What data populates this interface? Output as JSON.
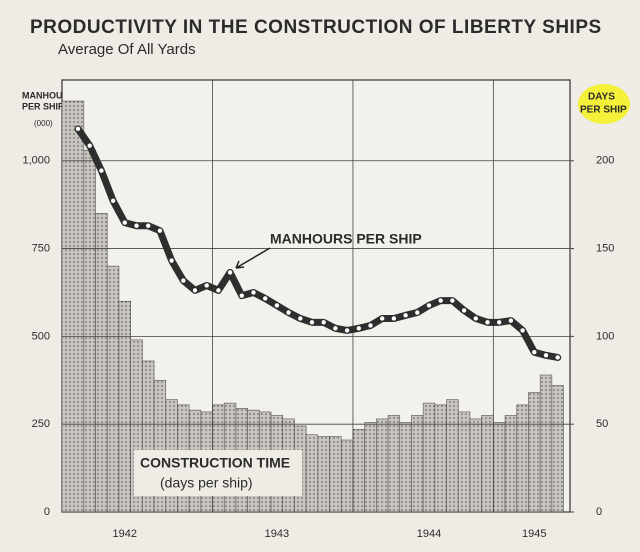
{
  "chart_data": {
    "type": "line",
    "title": "PRODUCTIVITY IN THE CONSTRUCTION OF LIBERTY SHIPS",
    "subtitle": "Average Of All Yards",
    "ylabel": [
      "MANHOURS",
      "PER SHIP",
      "(000)"
    ],
    "y2label": [
      "DAYS",
      "PER SHIP"
    ],
    "annotations": [
      "MANHOURS PER SHIP",
      "CONSTRUCTION TIME",
      "(days per ship)"
    ],
    "categories": [
      null,
      null,
      null,
      null,
      "1942",
      null,
      null,
      null,
      null,
      null,
      null,
      null,
      null,
      null,
      null,
      null,
      null,
      "1943",
      null,
      null,
      null,
      null,
      null,
      null,
      null,
      null,
      null,
      null,
      null,
      null,
      "1944",
      null,
      null,
      null,
      null,
      null,
      null,
      null,
      null,
      "1945",
      null,
      null
    ],
    "series": [
      {
        "name": "MANHOURS PER SHIP",
        "color": "#2e2e2e",
        "values": [
          1091,
          1043,
          972,
          886,
          824,
          815,
          815,
          801,
          716,
          659,
          631,
          645,
          631,
          682,
          616,
          625,
          608,
          588,
          568,
          551,
          540,
          540,
          523,
          517,
          523,
          531,
          551,
          551,
          560,
          568,
          588,
          602,
          602,
          574,
          551,
          540,
          540,
          545,
          517,
          455,
          446,
          440
        ]
      },
      {
        "name": "CONSTRUCTION TIME",
        "type": "bar",
        "axis": "y2",
        "color": "#a9a6a0",
        "values": [
          234,
          206,
          170,
          140,
          120,
          98,
          86,
          75,
          64,
          61,
          58,
          57,
          61,
          62,
          59,
          58,
          57,
          55,
          53,
          49,
          44,
          43,
          43,
          41,
          47,
          51,
          53,
          55,
          51,
          55,
          62,
          61,
          64,
          57,
          53,
          55,
          51,
          55,
          61,
          68,
          78,
          72
        ]
      }
    ],
    "ylim": [
      0,
      1230
    ],
    "yticks": [
      0,
      250,
      500,
      750,
      {
        "value": 1000,
        "label": "1,000"
      }
    ],
    "y2lim": [
      0,
      246
    ],
    "y2ticks": [
      0,
      50,
      100,
      150,
      200
    ],
    "grid": true
  }
}
